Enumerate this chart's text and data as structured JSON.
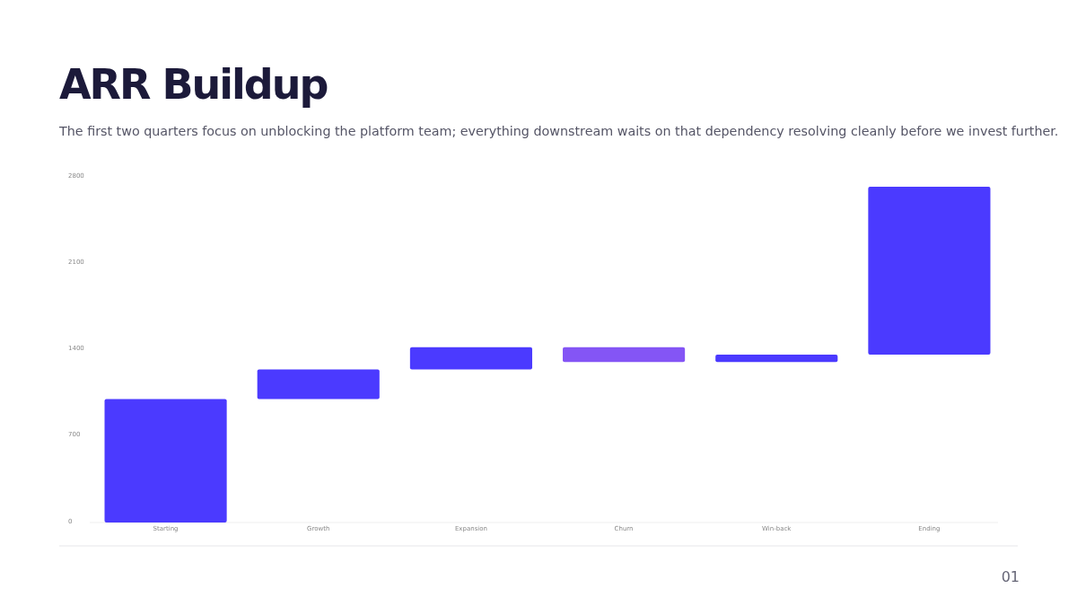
{
  "chart_data": {
    "type": "bar",
    "title": "ARR Buildup",
    "subtitle": "The first two quarters focus on unblocking the platform team; everything downstream waits on that dependency resolving cleanly before we invest further.",
    "categories": [
      "Starting",
      "Growth",
      "Expansion",
      "Churn",
      "Win-back",
      "Ending"
    ],
    "values": [
      1000,
      240,
      180,
      -120,
      60,
      1360
    ],
    "base": [
      0,
      1000,
      1240,
      1420,
      1300,
      1360
    ],
    "colors": [
      "#4b3aff",
      "#4b3aff",
      "#4b3aff",
      "#8455f5",
      "#4b3aff",
      "#4b3aff"
    ],
    "ylim": [
      0,
      2800
    ],
    "yticks": [
      0,
      700,
      1400,
      2100,
      2800
    ],
    "grid": false,
    "annotations": [
      "01"
    ]
  }
}
